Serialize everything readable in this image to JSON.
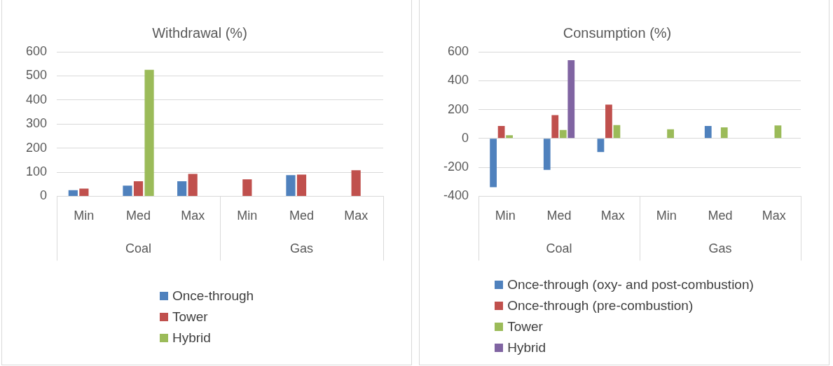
{
  "chart_data": [
    {
      "type": "bar",
      "title": "Withdrawal (%)",
      "categories": [
        "Min",
        "Med",
        "Max",
        "Min",
        "Med",
        "Max"
      ],
      "annotations": [
        "Coal",
        "Gas"
      ],
      "series": [
        {
          "name": "Once-through",
          "color": "#4f81bd",
          "values": [
            25,
            44,
            62,
            null,
            88,
            null
          ]
        },
        {
          "name": "Tower",
          "color": "#c0504d",
          "values": [
            32,
            62,
            93,
            70,
            90,
            108
          ]
        },
        {
          "name": "Hybrid",
          "color": "#9bbb59",
          "values": [
            null,
            525,
            null,
            null,
            null,
            null
          ]
        }
      ],
      "ylim": [
        0,
        600
      ],
      "yticks": [
        0,
        100,
        200,
        300,
        400,
        500,
        600
      ],
      "grid": "y",
      "legend": "bottom"
    },
    {
      "type": "bar",
      "title": "Consumption (%)",
      "categories": [
        "Min",
        "Med",
        "Max",
        "Min",
        "Med",
        "Max"
      ],
      "annotations": [
        "Coal",
        "Gas"
      ],
      "series": [
        {
          "name": "Once-through (oxy- and post-combustion)",
          "color": "#4f81bd",
          "values": [
            -338,
            -218,
            -94,
            null,
            86,
            null
          ]
        },
        {
          "name": "Once-through (pre-combustion)",
          "color": "#c0504d",
          "values": [
            86,
            161,
            234,
            null,
            null,
            null
          ]
        },
        {
          "name": "Tower",
          "color": "#9bbb59",
          "values": [
            22,
            58,
            93,
            64,
            77,
            90
          ]
        },
        {
          "name": "Hybrid",
          "color": "#8064a2",
          "values": [
            null,
            542,
            null,
            null,
            null,
            null
          ]
        }
      ],
      "ylim": [
        -400,
        600
      ],
      "yticks": [
        -400,
        -200,
        0,
        200,
        400,
        600
      ],
      "grid": "y",
      "legend": "bottom"
    }
  ]
}
